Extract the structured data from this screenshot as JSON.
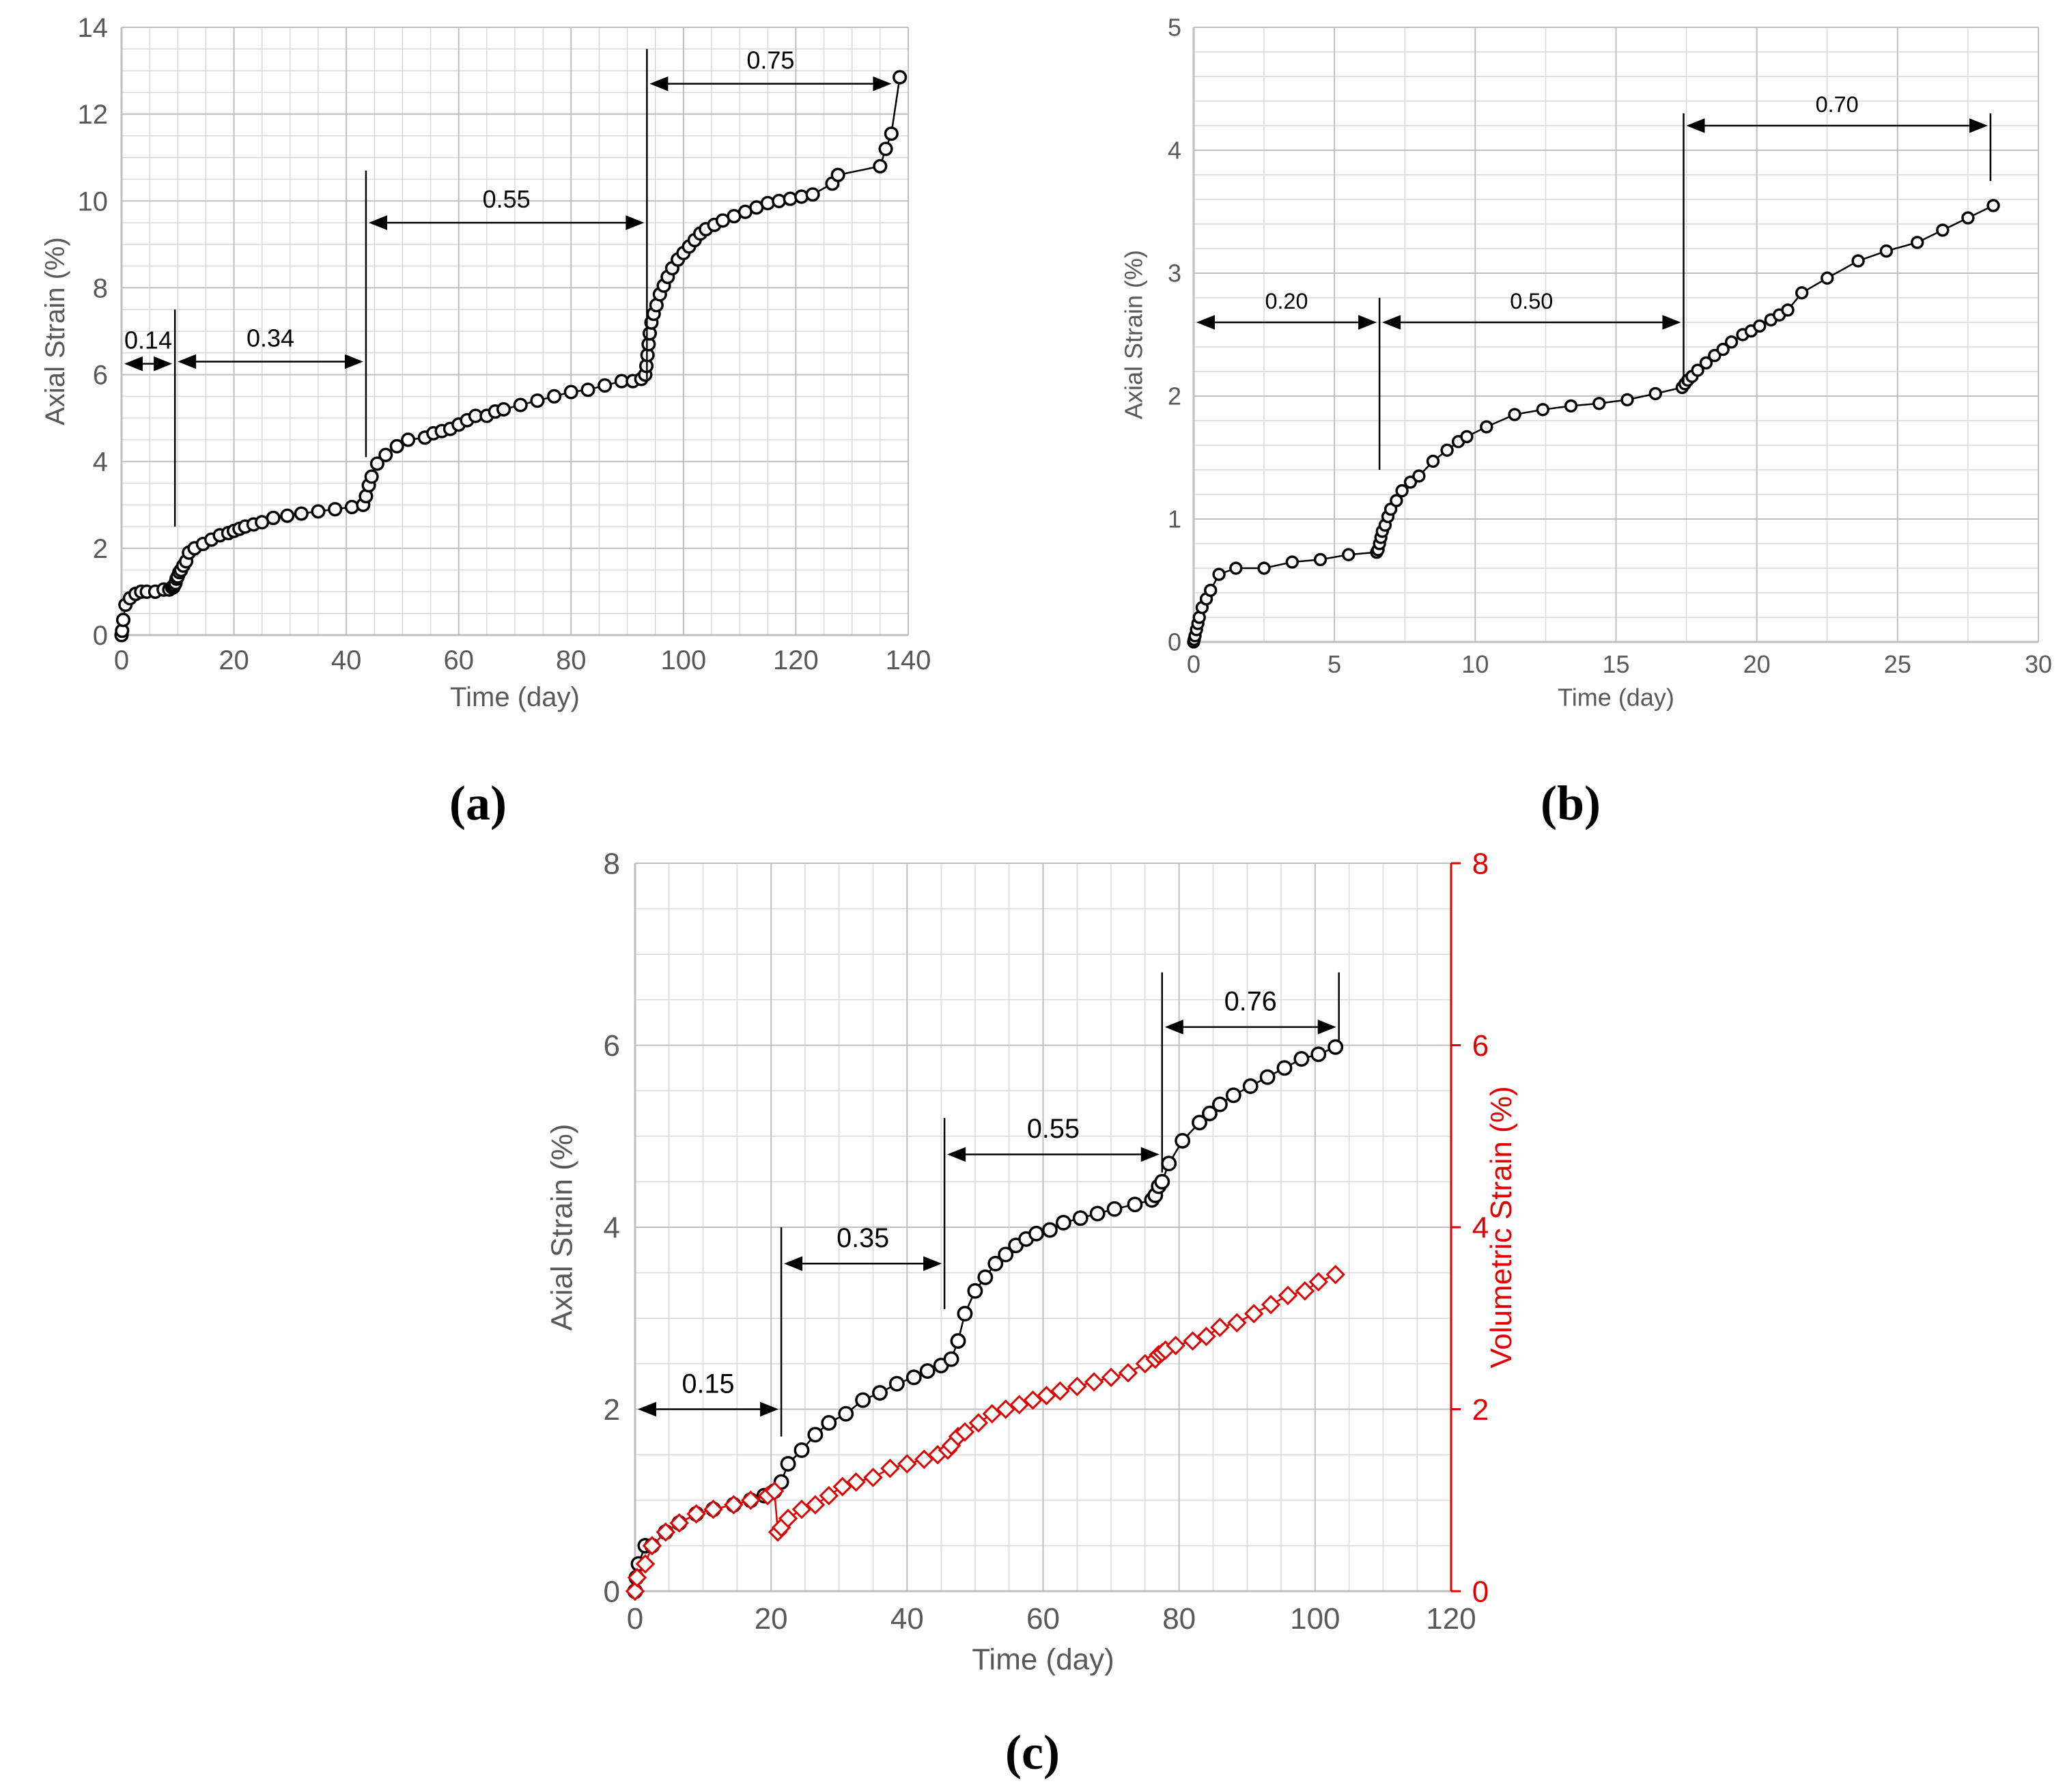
{
  "colors": {
    "axis_text": "#595959",
    "grid": "#d9d9d9",
    "grid_major": "#bfbfbf",
    "series_black": "#000000",
    "series_red": "#e00000"
  },
  "captions": {
    "a": "(a)",
    "b": "(b)",
    "c": "(c)"
  },
  "chart_data": [
    {
      "id": "a",
      "type": "scatter",
      "xlabel": "Time (day)",
      "ylabel": "Axial Strain (%)",
      "xlim": [
        0,
        140
      ],
      "ylim": [
        0,
        14
      ],
      "xticks": [
        0,
        20,
        40,
        60,
        80,
        100,
        120,
        140
      ],
      "yticks": [
        0,
        2,
        4,
        6,
        8,
        10,
        12,
        14
      ],
      "grid": true,
      "series": [
        {
          "name": "Axial strain",
          "marker": "circle",
          "color": "#000000",
          "x": [
            0,
            0.1,
            0.3,
            0.7,
            1.5,
            2.5,
            3.5,
            4.5,
            6,
            7.5,
            8.5,
            9,
            9.2,
            9.4,
            9.6,
            9.8,
            10,
            10.3,
            10.6,
            11,
            11.5,
            12,
            13,
            14.5,
            16,
            17.5,
            19,
            20,
            21,
            22,
            23.5,
            25,
            27,
            29.5,
            32,
            35,
            38,
            41,
            43,
            43.5,
            44,
            44.5,
            45.5,
            47,
            49,
            51,
            54,
            55.5,
            57,
            58.5,
            60,
            61.5,
            63,
            65,
            66.5,
            68,
            71,
            74,
            77,
            80,
            83,
            86,
            89,
            91,
            92.5,
            93.2,
            93.4,
            93.6,
            93.8,
            94,
            94.3,
            94.7,
            95.2,
            95.8,
            96.5,
            97.2,
            98,
            99,
            100,
            101,
            102,
            103,
            104,
            105.5,
            107,
            109,
            111,
            113,
            115,
            117,
            119,
            121,
            123,
            126.5,
            127.5,
            135,
            136,
            137,
            138.5
          ],
          "y": [
            0,
            0.1,
            0.35,
            0.7,
            0.85,
            0.95,
            1.0,
            1.0,
            1.0,
            1.05,
            1.05,
            1.1,
            1.1,
            1.15,
            1.2,
            1.3,
            1.35,
            1.45,
            1.5,
            1.6,
            1.7,
            1.9,
            2.0,
            2.1,
            2.2,
            2.3,
            2.35,
            2.4,
            2.45,
            2.5,
            2.55,
            2.6,
            2.7,
            2.75,
            2.8,
            2.85,
            2.9,
            2.95,
            3.0,
            3.2,
            3.45,
            3.65,
            3.95,
            4.15,
            4.35,
            4.5,
            4.55,
            4.65,
            4.7,
            4.75,
            4.85,
            4.95,
            5.05,
            5.05,
            5.15,
            5.2,
            5.3,
            5.4,
            5.5,
            5.6,
            5.65,
            5.75,
            5.85,
            5.85,
            5.9,
            6.0,
            6.2,
            6.45,
            6.7,
            6.95,
            7.2,
            7.4,
            7.6,
            7.85,
            8.05,
            8.25,
            8.45,
            8.65,
            8.8,
            8.95,
            9.1,
            9.25,
            9.35,
            9.45,
            9.55,
            9.65,
            9.75,
            9.85,
            9.95,
            10.0,
            10.05,
            10.1,
            10.15,
            10.4,
            10.6,
            10.8,
            11.2,
            11.55,
            12.85
          ]
        }
      ],
      "annotations": [
        {
          "label": "0.14",
          "x_start": 0,
          "x_end": 9.5,
          "y": 6.25,
          "line_x": 9.5,
          "line_from": 2.5,
          "line_to": 7.5
        },
        {
          "label": "0.34",
          "x_start": 9.5,
          "x_end": 43.5,
          "y": 6.3,
          "line_x": 43.5,
          "line_from": 4.1,
          "line_to": 10.7
        },
        {
          "label": "0.55",
          "x_start": 43.5,
          "x_end": 93.5,
          "y": 9.5,
          "line_x": 93.5,
          "line_from": 5.9,
          "line_to": 13.5
        },
        {
          "label": "0.75",
          "x_start": 93.5,
          "x_end": 137.5,
          "y": 12.7,
          "line_x": null,
          "line_from": null,
          "line_to": null
        }
      ]
    },
    {
      "id": "b",
      "type": "line",
      "xlabel": "Time (day)",
      "ylabel": "Axial Strain (%)",
      "xlim": [
        0,
        30
      ],
      "ylim": [
        0,
        5
      ],
      "xticks": [
        0,
        5,
        10,
        15,
        20,
        25,
        30
      ],
      "yticks": [
        0,
        1,
        2,
        3,
        4,
        5
      ],
      "grid": true,
      "series": [
        {
          "name": "Axial strain",
          "marker": "circle",
          "color": "#000000",
          "x": [
            0,
            0.02,
            0.05,
            0.1,
            0.15,
            0.2,
            0.3,
            0.45,
            0.6,
            0.9,
            1.5,
            2.5,
            3.5,
            4.5,
            5.5,
            6.5,
            6.55,
            6.6,
            6.65,
            6.7,
            6.8,
            6.9,
            7.0,
            7.2,
            7.4,
            7.7,
            8.0,
            8.5,
            9.0,
            9.4,
            9.7,
            10.4,
            11.4,
            12.4,
            13.4,
            14.4,
            15.4,
            16.4,
            17.35,
            17.45,
            17.55,
            17.7,
            17.9,
            18.2,
            18.5,
            18.8,
            19.1,
            19.5,
            19.8,
            20.1,
            20.5,
            20.8,
            21.1,
            21.6,
            22.5,
            23.6,
            24.6,
            25.7,
            26.6,
            27.5,
            28.4
          ],
          "y": [
            0,
            0.02,
            0.05,
            0.1,
            0.15,
            0.2,
            0.28,
            0.35,
            0.42,
            0.55,
            0.6,
            0.6,
            0.65,
            0.67,
            0.71,
            0.73,
            0.75,
            0.8,
            0.85,
            0.9,
            0.95,
            1.02,
            1.08,
            1.15,
            1.23,
            1.3,
            1.35,
            1.47,
            1.56,
            1.63,
            1.67,
            1.75,
            1.85,
            1.89,
            1.92,
            1.94,
            1.97,
            2.02,
            2.07,
            2.1,
            2.13,
            2.16,
            2.21,
            2.27,
            2.33,
            2.38,
            2.44,
            2.5,
            2.53,
            2.57,
            2.62,
            2.66,
            2.7,
            2.84,
            2.96,
            3.1,
            3.18,
            3.25,
            3.35,
            3.45,
            3.55
          ]
        }
      ],
      "annotations": [
        {
          "label": "0.20",
          "x_start": 0,
          "x_end": 6.6,
          "y": 2.6,
          "line_x": 6.6,
          "line_from": 1.4,
          "line_to": 2.8
        },
        {
          "label": "0.50",
          "x_start": 6.6,
          "x_end": 17.4,
          "y": 2.6,
          "line_x": 17.4,
          "line_from": 2.1,
          "line_to": 4.3
        },
        {
          "label": "0.70",
          "x_start": 17.4,
          "x_end": 28.3,
          "y": 4.2,
          "line_x": 28.3,
          "line_from": 3.75,
          "line_to": 4.3
        }
      ]
    },
    {
      "id": "c",
      "type": "scatter",
      "xlabel": "Time (day)",
      "ylabel": "Axial Strain (%)",
      "ylabel_right": "Volumetric Strain (%)",
      "xlim": [
        0,
        120
      ],
      "ylim": [
        0,
        8
      ],
      "ylim_right": [
        0,
        8
      ],
      "xticks": [
        0,
        20,
        40,
        60,
        80,
        100,
        120
      ],
      "yticks": [
        0,
        2,
        4,
        6,
        8
      ],
      "yticks_right": [
        0,
        2,
        4,
        6,
        8
      ],
      "grid": true,
      "series": [
        {
          "name": "Axial strain",
          "marker": "circle",
          "color": "#000000",
          "axis": "left",
          "x": [
            0,
            0.2,
            0.5,
            1.5,
            2.5,
            4.5,
            6.5,
            9,
            11.5,
            14.5,
            17,
            19,
            20.5,
            21.5,
            22.5,
            24.5,
            26.5,
            28.5,
            31,
            33.5,
            36,
            38.5,
            41,
            43,
            45,
            46.5,
            47.5,
            48.5,
            50,
            51.5,
            53,
            54.5,
            56,
            57.5,
            59,
            61,
            63,
            65.5,
            68,
            70.5,
            73.5,
            76,
            76.5,
            77,
            77.5,
            78.5,
            80.5,
            83,
            84.5,
            86,
            88,
            90.5,
            93,
            95.5,
            98,
            100.5,
            103
          ],
          "y": [
            0,
            0.15,
            0.3,
            0.5,
            0.5,
            0.65,
            0.75,
            0.85,
            0.9,
            0.95,
            1.0,
            1.05,
            1.1,
            1.2,
            1.4,
            1.55,
            1.72,
            1.85,
            1.95,
            2.1,
            2.18,
            2.28,
            2.35,
            2.42,
            2.48,
            2.55,
            2.75,
            3.05,
            3.3,
            3.45,
            3.6,
            3.7,
            3.8,
            3.87,
            3.93,
            3.97,
            4.05,
            4.1,
            4.15,
            4.2,
            4.25,
            4.3,
            4.35,
            4.45,
            4.5,
            4.7,
            4.95,
            5.15,
            5.25,
            5.35,
            5.45,
            5.55,
            5.65,
            5.75,
            5.85,
            5.9,
            5.98
          ]
        },
        {
          "name": "Volumetric strain",
          "marker": "diamond",
          "color": "#e00000",
          "axis": "right",
          "x": [
            0,
            0.3,
            1.5,
            2.5,
            4.5,
            6.5,
            9,
            11.5,
            14.5,
            17,
            19.5,
            20.5,
            21,
            21.5,
            22.5,
            24.5,
            26.5,
            28.5,
            30.5,
            32.5,
            35,
            37.5,
            40,
            42.5,
            44.5,
            46,
            46.5,
            47.5,
            48.5,
            50.5,
            52.5,
            54.5,
            56.5,
            58.5,
            60.5,
            62.5,
            65,
            67.5,
            70,
            72.5,
            75,
            76.5,
            77,
            77.5,
            78,
            79.5,
            82,
            84,
            86,
            88.5,
            91,
            93.5,
            96,
            98.5,
            100.5,
            103
          ],
          "y": [
            0,
            0.15,
            0.3,
            0.5,
            0.65,
            0.75,
            0.85,
            0.9,
            0.95,
            1.0,
            1.05,
            1.1,
            0.65,
            0.7,
            0.8,
            0.9,
            0.95,
            1.05,
            1.15,
            1.2,
            1.25,
            1.35,
            1.4,
            1.45,
            1.5,
            1.55,
            1.6,
            1.7,
            1.75,
            1.85,
            1.95,
            2.0,
            2.05,
            2.1,
            2.15,
            2.2,
            2.25,
            2.3,
            2.35,
            2.4,
            2.5,
            2.55,
            2.6,
            2.62,
            2.65,
            2.7,
            2.75,
            2.8,
            2.9,
            2.95,
            3.05,
            3.15,
            3.25,
            3.3,
            3.4,
            3.48
          ]
        }
      ],
      "annotations": [
        {
          "label": "0.15",
          "x_start": 0,
          "x_end": 21.5,
          "y": 2.0,
          "line_x": 21.5,
          "line_from": 1.7,
          "line_to": 4.0
        },
        {
          "label": "0.35",
          "x_start": 21.5,
          "x_end": 45.5,
          "y": 3.6,
          "line_x": 45.5,
          "line_from": 3.1,
          "line_to": 5.2
        },
        {
          "label": "0.55",
          "x_start": 45.5,
          "x_end": 77.5,
          "y": 4.8,
          "line_x": 77.5,
          "line_from": 4.6,
          "line_to": 6.8
        },
        {
          "label": "0.76",
          "x_start": 77.5,
          "x_end": 103.5,
          "y": 6.2,
          "line_x": 103.5,
          "line_from": 6.05,
          "line_to": 6.8
        }
      ]
    }
  ]
}
